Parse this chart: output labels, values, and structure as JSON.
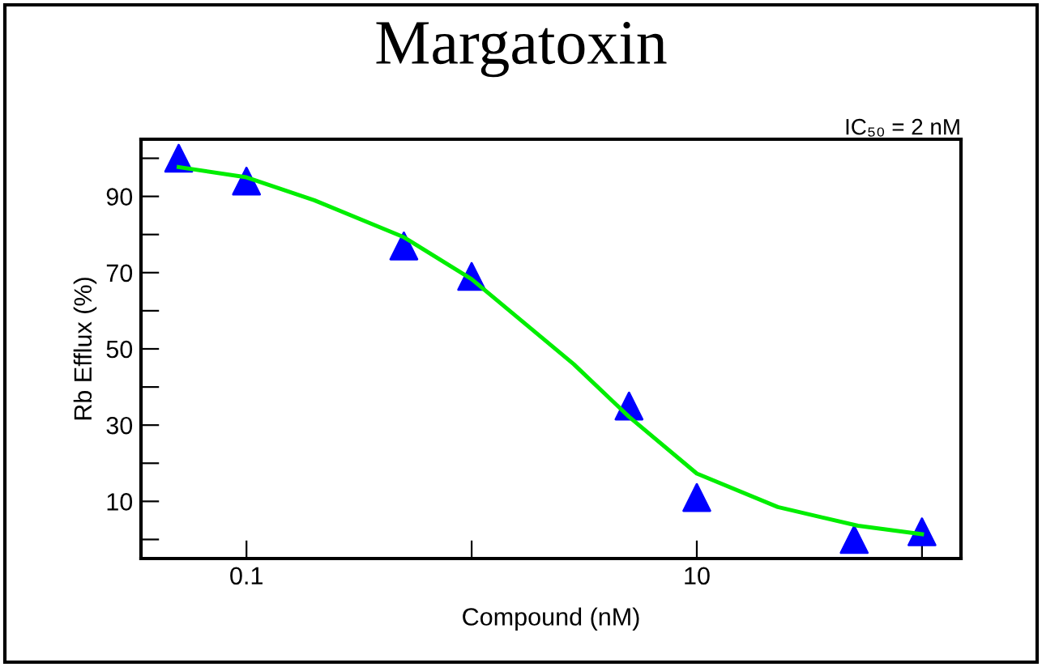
{
  "chart_data": {
    "type": "scatter",
    "title": "Margatoxin",
    "xlabel": "Compound (nM)",
    "ylabel": "Rb Efflux (%)",
    "annotations": [
      "IC₅₀ = 2 nM"
    ],
    "log": "x",
    "grid": false,
    "xlim": [
      0.034,
      149
    ],
    "ylim": [
      -5,
      105
    ],
    "xticks": [
      0.1,
      {
        "value": 1,
        "label": null
      },
      10,
      {
        "value": 100,
        "label": null
      }
    ],
    "yticks": [
      {
        "value": 0,
        "label": null
      },
      10,
      {
        "value": 20,
        "label": null
      },
      30,
      {
        "value": 40,
        "label": null
      },
      50,
      {
        "value": 60,
        "label": null
      },
      70,
      {
        "value": 80,
        "label": null
      },
      90,
      {
        "value": 100,
        "label": null
      }
    ],
    "series": [
      {
        "color": "#0000ff",
        "marker": "triangle",
        "x": [
          0.05,
          0.1,
          0.5,
          1,
          5,
          10,
          50,
          100
        ],
        "values": [
          100,
          94,
          77,
          69,
          35,
          11,
          0,
          2
        ]
      },
      {
        "type": "line",
        "color": "#00ee00",
        "marker": "none",
        "line_style": "solid",
        "x": [
          0.05,
          0.1,
          0.2,
          0.5,
          1,
          2.84,
          5,
          10,
          22.9,
          52,
          100
        ],
        "values": [
          97.7,
          95,
          89,
          79.3,
          68.3,
          46,
          32.2,
          17.3,
          8.5,
          3.6,
          1.4
        ]
      }
    ]
  }
}
